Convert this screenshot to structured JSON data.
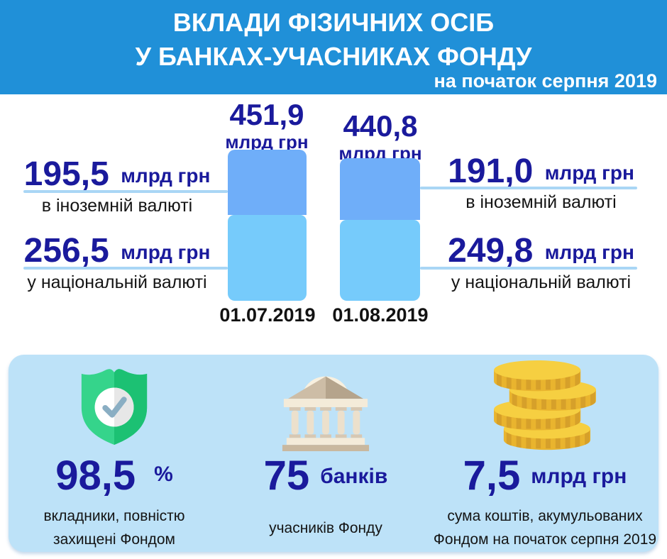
{
  "header": {
    "bg_color": "#2090d8",
    "title_line1": "ВКЛАДИ ФІЗИЧНИХ ОСІБ",
    "title_line2": "У БАНКАХ-УЧАСНИКАХ ФОНДУ",
    "subtitle": "на початок серпня 2019"
  },
  "chart_data": {
    "type": "bar",
    "stacked": true,
    "unit": "млрд грн",
    "categories": [
      "01.07.2019",
      "01.08.2019"
    ],
    "series": [
      {
        "name": "в іноземній валюті",
        "key": "foreign",
        "color": "#6faef9",
        "values": [
          195.5,
          191.0
        ]
      },
      {
        "name": "у національній валюті",
        "key": "national",
        "color": "#76cbfb",
        "values": [
          256.5,
          249.8
        ]
      }
    ],
    "totals": [
      451.9,
      440.8
    ],
    "line_color": "#a9d6f5",
    "labels": {
      "bar1": {
        "total": "451,9",
        "unit": "млрд грн",
        "date": "01.07.2019"
      },
      "bar2": {
        "total": "440,8",
        "unit": "млрд грн",
        "date": "01.08.2019"
      },
      "left_foreign": {
        "value": "195,5",
        "unit": "млрд грн",
        "caption": "в іноземній валюті"
      },
      "left_national": {
        "value": "256,5",
        "unit": "млрд грн",
        "caption": "у національній валюті"
      },
      "right_foreign": {
        "value": "191,0",
        "unit": "млрд грн",
        "caption": "в іноземній валюті"
      },
      "right_national": {
        "value": "249,8",
        "unit": "млрд грн",
        "caption": "у національній валюті"
      }
    }
  },
  "stats_panel": {
    "bg_color": "#bde2f8",
    "value_color": "#1a1a9c",
    "items": [
      {
        "icon": "shield-check-icon",
        "value": "98,5",
        "unit": "%",
        "caption": "вкладники, повністю захищені Фондом"
      },
      {
        "icon": "bank-building-icon",
        "value": "75",
        "unit": "банків",
        "caption": "учасників Фонду"
      },
      {
        "icon": "coins-stack-icon",
        "value": "7,5",
        "unit": "млрд грн",
        "caption": "сума коштів, акумульованих Фондом на початок серпня 2019"
      }
    ]
  }
}
